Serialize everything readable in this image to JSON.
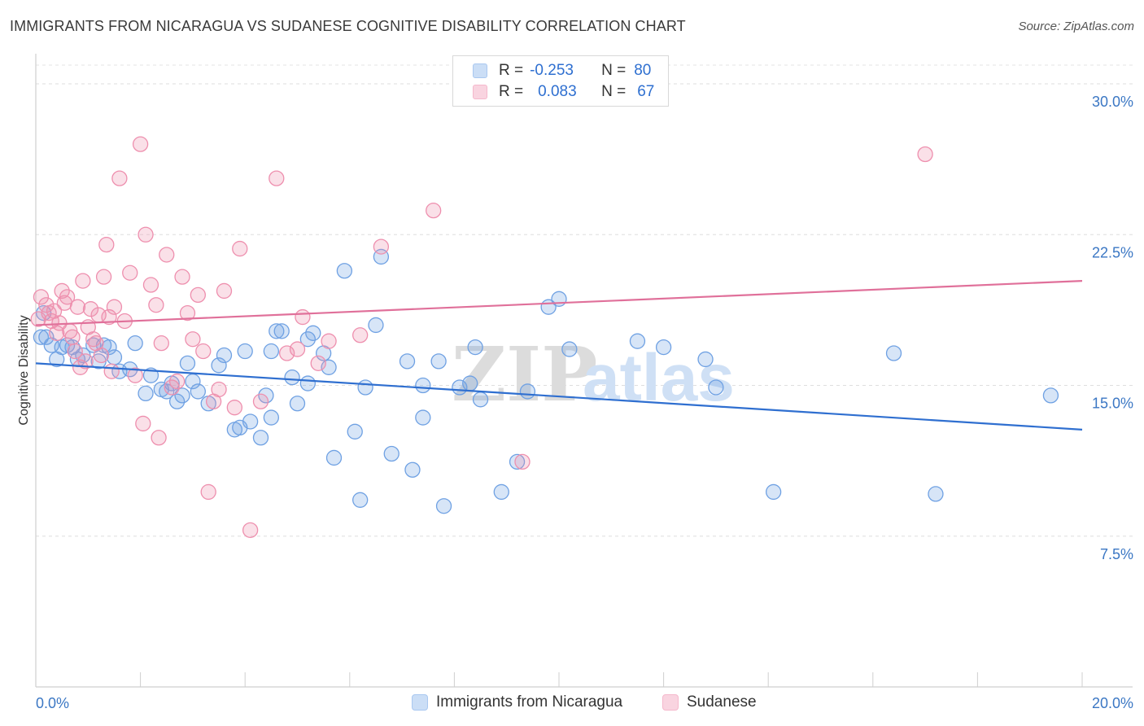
{
  "title": "IMMIGRANTS FROM NICARAGUA VS SUDANESE COGNITIVE DISABILITY CORRELATION CHART",
  "source": "Source: ZipAtlas.com",
  "watermark": {
    "zip": "ZIP",
    "atlas": "atlas"
  },
  "legend": {
    "rows": [
      {
        "r_label": "R =",
        "r_value": "-0.253",
        "n_label": "N =",
        "n_value": "80",
        "color": "#a9c8f0"
      },
      {
        "r_label": "R =",
        "r_value": "0.083",
        "n_label": "N =",
        "n_value": "67",
        "color": "#f5b8cc"
      }
    ]
  },
  "bottom_legend": [
    {
      "label": "Immigrants from Nicaragua",
      "color": "#a9c8f0"
    },
    {
      "label": "Sudanese",
      "color": "#f5b8cc"
    }
  ],
  "chart_data": {
    "type": "scatter",
    "ylabel": "Cognitive Disability",
    "xlim": [
      0,
      20
    ],
    "ylim": [
      0,
      31.5
    ],
    "x_tick_labels": [
      "0.0%",
      "20.0%"
    ],
    "y_ticks": [
      7.5,
      15.0,
      22.5,
      30.0
    ],
    "y_tick_labels": [
      "7.5%",
      "15.0%",
      "22.5%",
      "30.0%"
    ],
    "grid": true,
    "series": [
      {
        "name": "Immigrants from Nicaragua",
        "color": "#6fa1e3",
        "line_color": "#2f6fd0",
        "trend": [
          [
            0,
            16.1
          ],
          [
            20,
            12.8
          ]
        ],
        "points": [
          [
            0.1,
            17.4
          ],
          [
            0.2,
            17.4
          ],
          [
            0.3,
            17.0
          ],
          [
            0.4,
            16.3
          ],
          [
            0.5,
            16.9
          ],
          [
            0.6,
            17.0
          ],
          [
            0.7,
            16.9
          ],
          [
            0.8,
            16.3
          ],
          [
            0.9,
            16.5
          ],
          [
            1.1,
            17.0
          ],
          [
            1.2,
            16.2
          ],
          [
            1.3,
            17.0
          ],
          [
            1.4,
            16.9
          ],
          [
            1.5,
            16.4
          ],
          [
            1.6,
            15.7
          ],
          [
            1.8,
            15.8
          ],
          [
            1.9,
            17.1
          ],
          [
            2.1,
            14.6
          ],
          [
            2.2,
            15.5
          ],
          [
            2.4,
            14.8
          ],
          [
            2.5,
            14.7
          ],
          [
            2.6,
            15.1
          ],
          [
            2.7,
            14.2
          ],
          [
            2.8,
            14.5
          ],
          [
            2.9,
            16.1
          ],
          [
            3.0,
            15.2
          ],
          [
            3.1,
            14.7
          ],
          [
            3.3,
            14.1
          ],
          [
            3.5,
            16.0
          ],
          [
            3.6,
            16.5
          ],
          [
            3.8,
            12.8
          ],
          [
            3.9,
            12.9
          ],
          [
            4.0,
            16.7
          ],
          [
            4.1,
            13.2
          ],
          [
            4.3,
            12.4
          ],
          [
            4.5,
            13.4
          ],
          [
            4.4,
            14.5
          ],
          [
            4.5,
            16.7
          ],
          [
            4.6,
            17.7
          ],
          [
            4.7,
            17.7
          ],
          [
            4.9,
            15.4
          ],
          [
            5.0,
            14.1
          ],
          [
            5.2,
            15.1
          ],
          [
            5.2,
            17.3
          ],
          [
            5.3,
            17.6
          ],
          [
            5.5,
            16.6
          ],
          [
            5.6,
            15.9
          ],
          [
            5.7,
            11.4
          ],
          [
            5.9,
            20.7
          ],
          [
            6.1,
            12.7
          ],
          [
            6.2,
            9.3
          ],
          [
            6.3,
            14.9
          ],
          [
            6.5,
            18.0
          ],
          [
            6.6,
            21.4
          ],
          [
            6.8,
            11.6
          ],
          [
            7.1,
            16.2
          ],
          [
            7.2,
            10.8
          ],
          [
            7.4,
            13.4
          ],
          [
            7.4,
            15.0
          ],
          [
            7.7,
            16.2
          ],
          [
            7.8,
            9.0
          ],
          [
            8.1,
            14.9
          ],
          [
            8.3,
            15.1
          ],
          [
            8.4,
            16.9
          ],
          [
            8.5,
            14.3
          ],
          [
            8.9,
            9.7
          ],
          [
            9.2,
            11.2
          ],
          [
            9.4,
            14.7
          ],
          [
            9.8,
            18.9
          ],
          [
            10.0,
            19.3
          ],
          [
            10.2,
            16.8
          ],
          [
            11.5,
            17.2
          ],
          [
            12.0,
            16.9
          ],
          [
            12.8,
            16.3
          ],
          [
            13.0,
            14.9
          ],
          [
            14.1,
            9.7
          ],
          [
            16.4,
            16.6
          ],
          [
            17.2,
            9.6
          ],
          [
            19.4,
            14.5
          ],
          [
            0.15,
            18.6
          ]
        ]
      },
      {
        "name": "Sudanese",
        "color": "#ee8fae",
        "line_color": "#e0709a",
        "trend": [
          [
            0,
            18.0
          ],
          [
            20,
            20.2
          ]
        ],
        "points": [
          [
            0.1,
            19.4
          ],
          [
            0.2,
            19.0
          ],
          [
            0.25,
            18.6
          ],
          [
            0.3,
            18.2
          ],
          [
            0.4,
            17.6
          ],
          [
            0.5,
            19.7
          ],
          [
            0.6,
            19.4
          ],
          [
            0.7,
            17.4
          ],
          [
            0.8,
            18.9
          ],
          [
            0.9,
            20.2
          ],
          [
            1.0,
            17.9
          ],
          [
            1.1,
            17.3
          ],
          [
            1.2,
            18.5
          ],
          [
            1.3,
            20.4
          ],
          [
            1.35,
            22.0
          ],
          [
            1.4,
            18.4
          ],
          [
            1.5,
            18.9
          ],
          [
            1.6,
            25.3
          ],
          [
            1.7,
            18.2
          ],
          [
            1.8,
            20.6
          ],
          [
            1.9,
            15.5
          ],
          [
            2.0,
            27.0
          ],
          [
            2.1,
            22.5
          ],
          [
            2.2,
            20.0
          ],
          [
            2.3,
            19.0
          ],
          [
            2.4,
            17.1
          ],
          [
            2.5,
            21.5
          ],
          [
            2.6,
            14.9
          ],
          [
            2.7,
            15.2
          ],
          [
            2.8,
            20.4
          ],
          [
            2.9,
            18.6
          ],
          [
            3.0,
            17.3
          ],
          [
            3.1,
            19.5
          ],
          [
            3.2,
            16.7
          ],
          [
            3.3,
            9.7
          ],
          [
            3.4,
            14.2
          ],
          [
            3.5,
            14.8
          ],
          [
            3.6,
            19.7
          ],
          [
            3.8,
            13.9
          ],
          [
            3.9,
            21.8
          ],
          [
            4.1,
            7.8
          ],
          [
            4.3,
            14.2
          ],
          [
            4.6,
            25.3
          ],
          [
            4.8,
            16.6
          ],
          [
            5.0,
            16.8
          ],
          [
            5.1,
            18.4
          ],
          [
            5.4,
            16.1
          ],
          [
            5.6,
            17.2
          ],
          [
            6.2,
            17.5
          ],
          [
            6.6,
            21.9
          ],
          [
            7.6,
            23.7
          ],
          [
            9.3,
            11.2
          ],
          [
            17.0,
            26.5
          ],
          [
            0.05,
            18.3
          ],
          [
            0.35,
            18.7
          ],
          [
            0.45,
            18.1
          ],
          [
            0.55,
            19.1
          ],
          [
            0.65,
            17.7
          ],
          [
            0.75,
            16.7
          ],
          [
            0.85,
            15.9
          ],
          [
            0.95,
            16.2
          ],
          [
            1.05,
            18.8
          ],
          [
            1.15,
            17.1
          ],
          [
            1.25,
            16.5
          ],
          [
            1.45,
            15.7
          ],
          [
            2.05,
            13.1
          ],
          [
            2.35,
            12.4
          ]
        ]
      }
    ]
  }
}
